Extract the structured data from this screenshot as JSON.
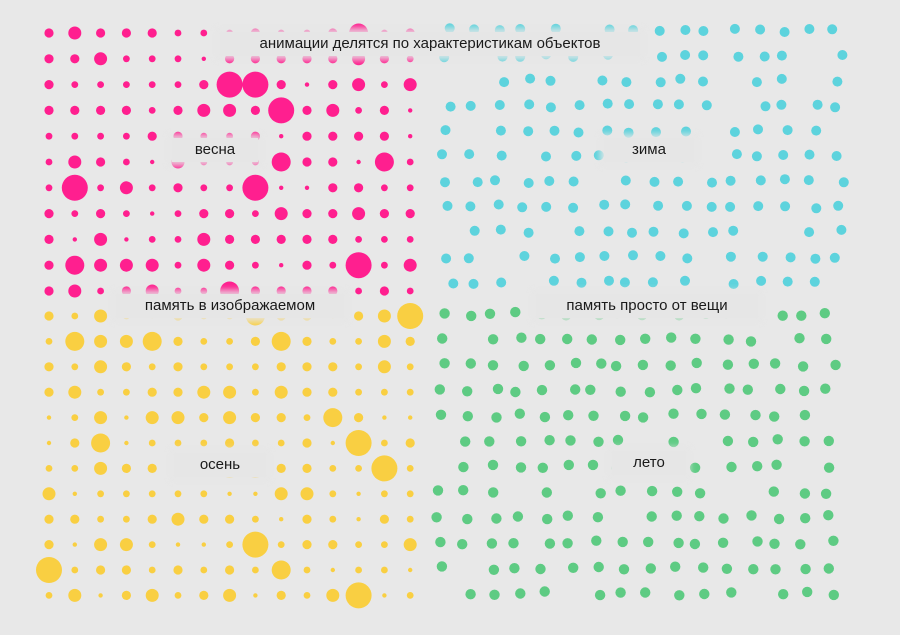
{
  "title": "анимации делятся по характеристикам объектов",
  "quadrants": {
    "spring": {
      "label": "весна",
      "color": "#ff1f8f"
    },
    "winter": {
      "label": "зима",
      "color": "#5dd3dd"
    },
    "autumn": {
      "label": "осень",
      "color": "#f9cf42"
    },
    "summer": {
      "label": "лето",
      "color": "#5ecb83"
    }
  },
  "axes": {
    "memory_in_depicted": "память в изображаемом",
    "memory_from_thing": "память просто от вещи"
  }
}
